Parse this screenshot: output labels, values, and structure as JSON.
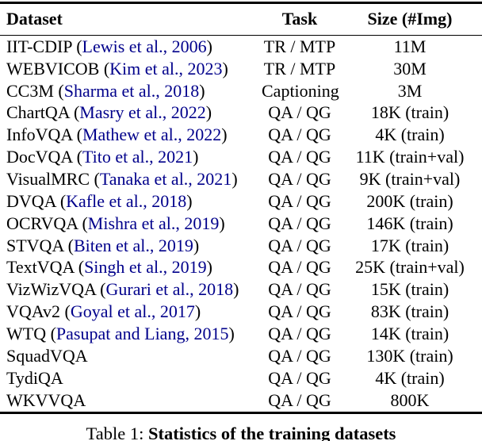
{
  "table": {
    "columns": [
      {
        "label": "Dataset",
        "align": "left"
      },
      {
        "label": "Task",
        "align": "center"
      },
      {
        "label": "Size (#Img)",
        "align": "center"
      }
    ],
    "rows": [
      {
        "dataset": "IIT-CDIP",
        "citation": "Lewis et al., 2006",
        "task": "TR / MTP",
        "size": "11M"
      },
      {
        "dataset": "WEBVICOB",
        "citation": "Kim et al., 2023",
        "task": "TR / MTP",
        "size": "30M"
      },
      {
        "dataset": "CC3M",
        "citation": "Sharma et al., 2018",
        "task": "Captioning",
        "size": "3M"
      },
      {
        "dataset": "ChartQA",
        "citation": "Masry et al., 2022",
        "task": "QA / QG",
        "size": "18K (train)"
      },
      {
        "dataset": "InfoVQA",
        "citation": "Mathew et al., 2022",
        "task": "QA / QG",
        "size": "4K (train)"
      },
      {
        "dataset": "DocVQA",
        "citation": "Tito et al., 2021",
        "task": "QA / QG",
        "size": "11K (train+val)"
      },
      {
        "dataset": "VisualMRC",
        "citation": "Tanaka et al., 2021",
        "task": "QA / QG",
        "size": "9K (train+val)"
      },
      {
        "dataset": "DVQA",
        "citation": "Kafle et al., 2018",
        "task": "QA / QG",
        "size": "200K (train)"
      },
      {
        "dataset": "OCRVQA",
        "citation": "Mishra et al., 2019",
        "task": "QA / QG",
        "size": "146K (train)"
      },
      {
        "dataset": "STVQA",
        "citation": "Biten et al., 2019",
        "task": "QA / QG",
        "size": "17K (train)"
      },
      {
        "dataset": "TextVQA",
        "citation": "Singh et al., 2019",
        "task": "QA / QG",
        "size": "25K (train+val)"
      },
      {
        "dataset": "VizWizVQA",
        "citation": "Gurari et al., 2018",
        "task": "QA / QG",
        "size": "15K (train)"
      },
      {
        "dataset": "VQAv2",
        "citation": "Goyal et al., 2017",
        "task": "QA / QG",
        "size": "83K (train)"
      },
      {
        "dataset": "WTQ",
        "citation": "Pasupat and Liang, 2015",
        "task": "QA / QG",
        "size": "14K (train)"
      },
      {
        "dataset": "SquadVQA",
        "citation": null,
        "task": "QA / QG",
        "size": "130K (train)"
      },
      {
        "dataset": "TydiQA",
        "citation": null,
        "task": "QA / QG",
        "size": "4K (train)"
      },
      {
        "dataset": "WKVVQA",
        "citation": null,
        "task": "QA / QG",
        "size": "800K"
      }
    ]
  },
  "caption": {
    "prefix": "Table 1: ",
    "title": "Statistics of the training datasets"
  },
  "colors": {
    "text": "#000000",
    "citation_link": "#00008B",
    "background": "#ffffff"
  }
}
